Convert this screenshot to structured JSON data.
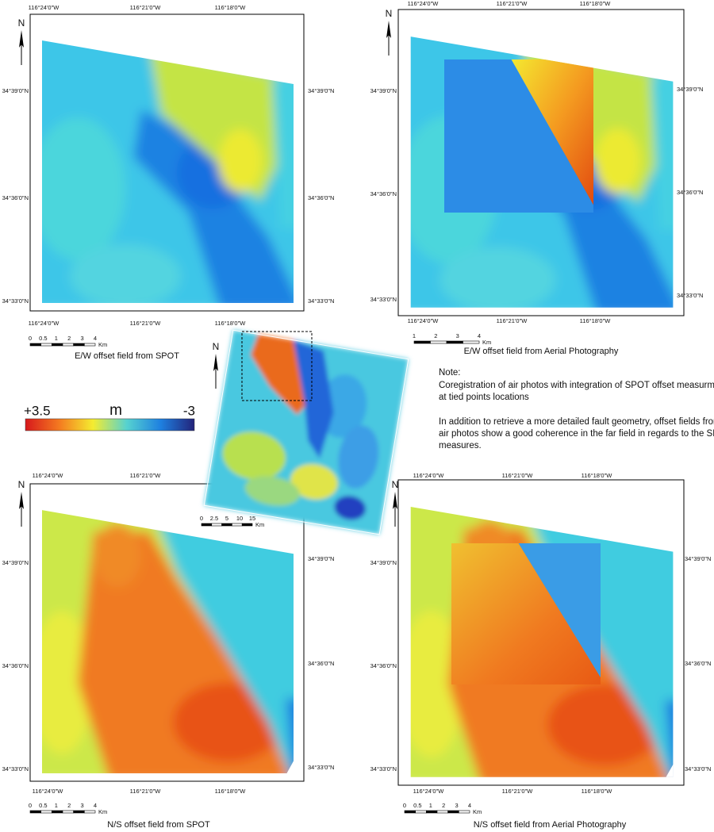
{
  "panels": [
    {
      "caption": "E/W offset field from SPOT",
      "lon_labels": [
        "116°24'0\"W",
        "116°21'0\"W",
        "116°18'0\"W"
      ],
      "lat_labels": [
        "34°39'0\"N",
        "34°36'0\"N",
        "34°33'0\"N"
      ],
      "north": "N",
      "scale_labels": [
        "0",
        "0.5",
        "1",
        "2",
        "3",
        "4"
      ],
      "scale_unit": "Km"
    },
    {
      "caption": "E/W offset field from Aerial Photography",
      "lon_labels": [
        "116°24'0\"W",
        "116°21'0\"W",
        "116°18'0\"W"
      ],
      "lat_labels": [
        "34°39'0\"N",
        "34°36'0\"N",
        "34°33'0\"N"
      ],
      "north": "N",
      "scale_labels": [
        "1",
        "2",
        "3",
        "4"
      ],
      "scale_unit": "Km"
    },
    {
      "caption": "N/S offset field from SPOT",
      "lon_labels": [
        "116°24'0\"W",
        "116°21'0\"W",
        "116°18'0\"W"
      ],
      "lat_labels": [
        "34°39'0\"N",
        "34°36'0\"N",
        "34°33'0\"N"
      ],
      "north": "N",
      "scale_labels": [
        "0",
        "0.5",
        "1",
        "2",
        "3",
        "4"
      ],
      "scale_unit": "Km"
    },
    {
      "caption": "N/S offset field from Aerial Photography",
      "lon_labels": [
        "116°24'0\"W",
        "116°21'0\"W",
        "116°18'0\"W"
      ],
      "lat_labels": [
        "34°39'0\"N",
        "34°36'0\"N",
        "34°33'0\"N"
      ],
      "north": "N",
      "scale_labels": [
        "0",
        "0.5",
        "1",
        "2",
        "3",
        "4"
      ],
      "scale_unit": "Km"
    }
  ],
  "inset": {
    "north": "N",
    "scale_labels": [
      "0",
      "2.5",
      "5",
      "10",
      "15"
    ],
    "scale_unit": "Km"
  },
  "colorbar": {
    "max_label": "+3.5",
    "unit": "m",
    "min_label": "-3"
  },
  "note": {
    "title": "Note:",
    "lines": [
      "Coregistration of air photos with integration of SPOT offset measurments",
      "at tied points locations",
      "In addition to retrieve a more detailed fault geometry, offset fields from",
      "air photos show a good coherence in the far field in regards to the SPOT",
      "measures."
    ]
  }
}
